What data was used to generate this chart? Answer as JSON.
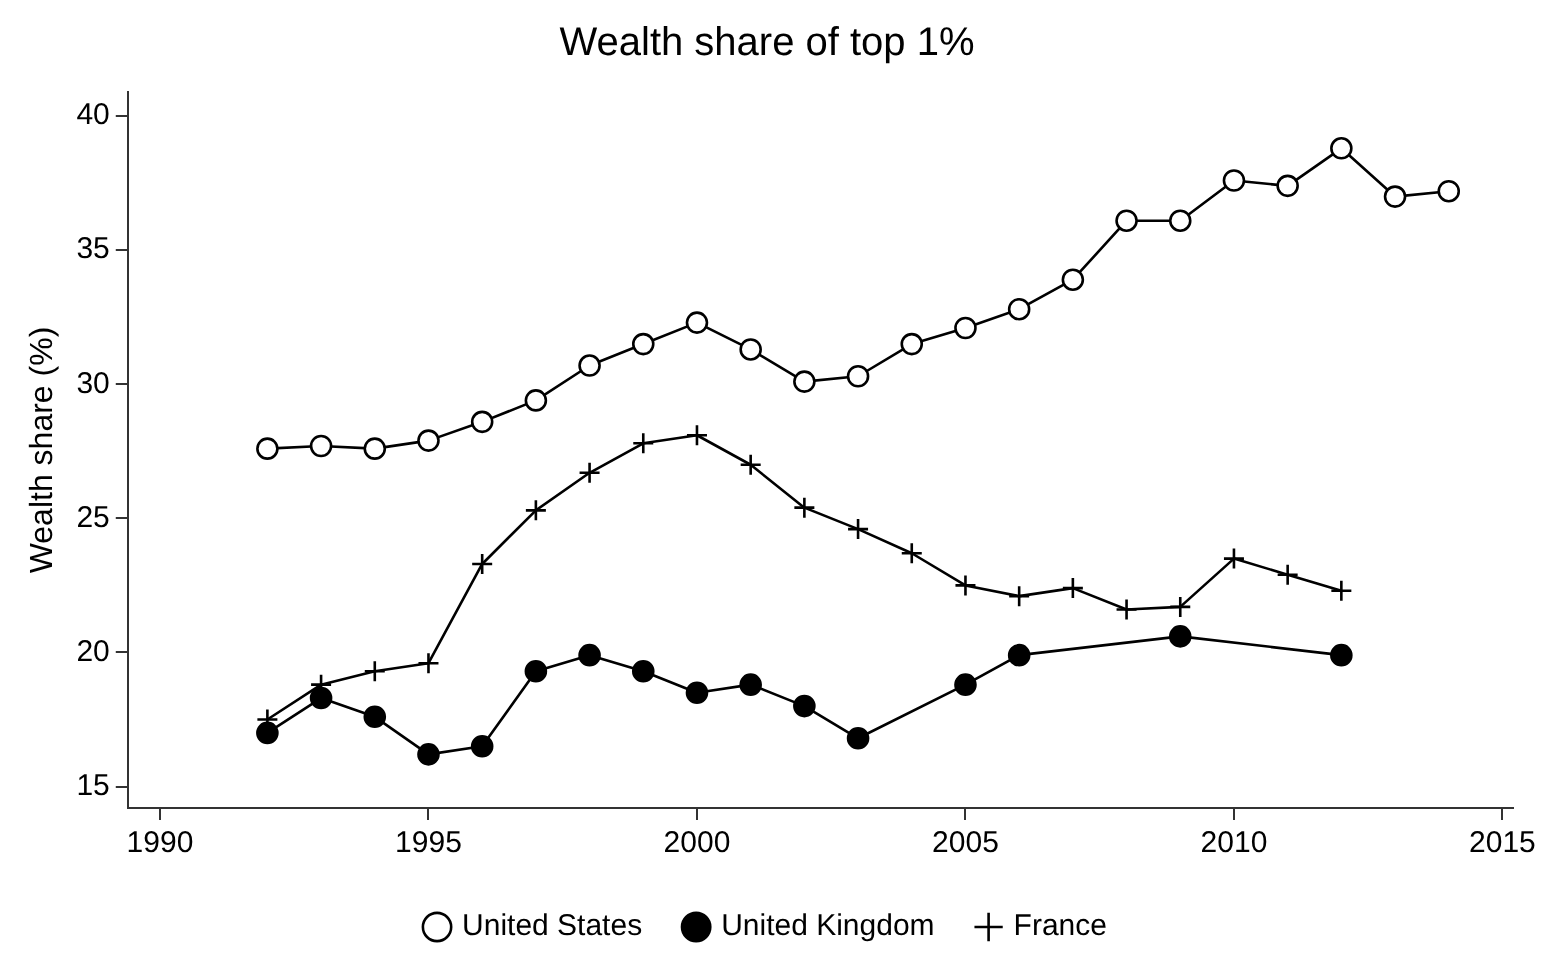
{
  "chart_data": {
    "type": "line",
    "title": "Wealth share of top 1%",
    "ylabel": "Wealth share (%)",
    "xlim": [
      1989.4,
      2015.2
    ],
    "xticks": [
      1990,
      1995,
      2000,
      2005,
      2010,
      2015
    ],
    "ylim": [
      14.2,
      40.9
    ],
    "yticks": [
      15,
      20,
      25,
      30,
      35,
      40
    ],
    "grid": false,
    "legend": "bottom",
    "line_style": "solid",
    "series": [
      {
        "name": "United States",
        "color": "#000000",
        "marker": "circle",
        "x": [
          1992,
          1993,
          1994,
          1995,
          1996,
          1997,
          1998,
          1999,
          2000,
          2001,
          2002,
          2003,
          2004,
          2005,
          2006,
          2007,
          2008,
          2009,
          2010,
          2011,
          2012,
          2013,
          2014
        ],
        "values": [
          27.6,
          27.7,
          27.6,
          27.9,
          28.6,
          29.4,
          30.7,
          31.5,
          32.3,
          31.3,
          30.1,
          30.3,
          31.5,
          32.1,
          32.8,
          33.9,
          36.1,
          36.1,
          37.6,
          37.4,
          38.8,
          37.0,
          37.2
        ]
      },
      {
        "name": "United Kingdom",
        "color": "#000000",
        "marker": "circle",
        "x": [
          1992,
          1993,
          1994,
          1995,
          1996,
          1997,
          1998,
          1999,
          2000,
          2001,
          2002,
          2003,
          2005,
          2006,
          2009,
          2012
        ],
        "values": [
          17.0,
          18.3,
          17.6,
          16.2,
          16.5,
          19.3,
          19.9,
          19.3,
          18.5,
          18.8,
          18.0,
          16.8,
          18.8,
          19.9,
          20.6,
          19.9
        ]
      },
      {
        "name": "France",
        "color": "#000000",
        "marker": "cross",
        "x": [
          1992,
          1993,
          1994,
          1995,
          1996,
          1997,
          1998,
          1999,
          2000,
          2001,
          2002,
          2003,
          2004,
          2005,
          2006,
          2007,
          2008,
          2009,
          2010,
          2011,
          2012
        ],
        "values": [
          17.5,
          18.8,
          19.3,
          19.6,
          23.3,
          25.3,
          26.7,
          27.8,
          28.1,
          27.0,
          25.4,
          24.6,
          23.7,
          22.5,
          22.1,
          22.4,
          21.6,
          21.7,
          23.5,
          22.9,
          22.3
        ]
      }
    ]
  }
}
